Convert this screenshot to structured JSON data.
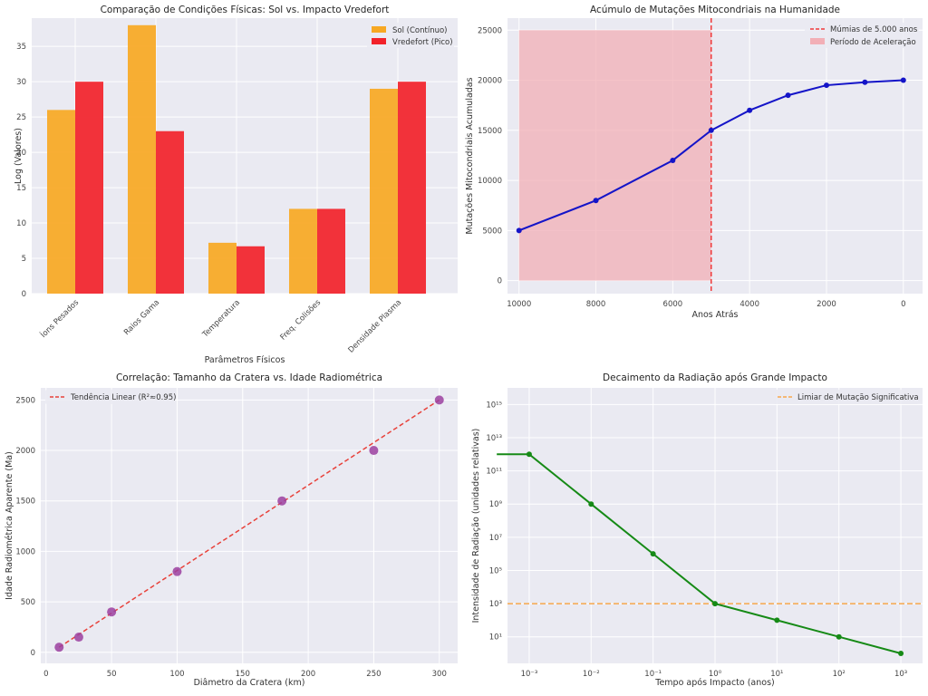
{
  "chart_data": [
    {
      "type": "bar",
      "title": "Comparação de Condições Físicas: Sol vs. Impacto Vredefort",
      "xlabel": "Parâmetros Físicos",
      "ylabel": "Log (Valores)",
      "categories": [
        "Íons Pesados",
        "Raios Gama",
        "Temperatura",
        "Freq. Colisões",
        "Densidade Plasma"
      ],
      "series": [
        {
          "name": "Sol (Contínuo)",
          "color": "#F7A823",
          "values": [
            26,
            38,
            7.2,
            12,
            29
          ]
        },
        {
          "name": "Vredefort (Pico)",
          "color": "#F2222A",
          "values": [
            30,
            23,
            6.7,
            12,
            30
          ]
        }
      ],
      "ylim": [
        0,
        39
      ],
      "yticks": [
        "0",
        "5",
        "10",
        "15",
        "20",
        "25",
        "30",
        "35"
      ],
      "grid": true,
      "legend_position": "top-right"
    },
    {
      "type": "line",
      "title": "Acúmulo de Mutações Mitocondriais na Humanidade",
      "xlabel": "Anos Atrás",
      "ylabel": "Mutações Mitocondriais Acumuladas",
      "x": [
        10000,
        8000,
        6000,
        5000,
        4000,
        3000,
        2000,
        1000,
        0
      ],
      "y": [
        5000,
        8000,
        12000,
        15000,
        17000,
        18500,
        19500,
        19800,
        20000
      ],
      "series_color": "#1414C8",
      "xlim": [
        10300,
        -500
      ],
      "ylim": [
        -1300,
        26200
      ],
      "xticks": [
        "10000",
        "8000",
        "6000",
        "4000",
        "2000",
        "0"
      ],
      "yticks": [
        "0",
        "5000",
        "10000",
        "15000",
        "20000",
        "25000"
      ],
      "vline": {
        "x": 5000,
        "label": "Múmias de 5.000 anos",
        "color": "#F03A3A"
      },
      "span": {
        "x_from": 10000,
        "x_to": 5000,
        "y_from": 0,
        "y_to": 25000,
        "label": "Período de Aceleração",
        "color": "#F2AFB6"
      },
      "grid": true,
      "legend_position": "top-right"
    },
    {
      "type": "scatter",
      "title": "Correlação: Tamanho da Cratera vs. Idade Radiométrica",
      "xlabel": "Diâmetro da Cratera (km)",
      "ylabel": "Idade Radiométrica Aparente (Ma)",
      "x": [
        10,
        25,
        50,
        100,
        180,
        250,
        300
      ],
      "y": [
        50,
        150,
        400,
        800,
        1500,
        2000,
        2500
      ],
      "point_color": "#9B3FA0",
      "fit_line": {
        "label": "Tendência Linear (R²≈0.95)",
        "x": [
          10,
          300
        ],
        "y": [
          50,
          2500
        ],
        "color": "#E8413A"
      },
      "xlim": [
        -4,
        314
      ],
      "ylim": [
        -110,
        2620
      ],
      "xticks": [
        "0",
        "50",
        "100",
        "150",
        "200",
        "250",
        "300"
      ],
      "yticks": [
        "0",
        "500",
        "1000",
        "1500",
        "2000",
        "2500"
      ],
      "grid": true,
      "legend_position": "top-left"
    },
    {
      "type": "line",
      "title": "Decaimento da Radiação após Grande Impacto",
      "xlabel": "Tempo após Impacto (anos)",
      "ylabel": "Intensidade de Radiação (unidades relativas)",
      "xscale": "log",
      "yscale": "log",
      "x": [
        0.001,
        0.01,
        0.1,
        1,
        10,
        100,
        1000
      ],
      "y": [
        1000000000000.0,
        1000000000.0,
        1000000.0,
        1000,
        100,
        10,
        1
      ],
      "leading_flat_from_x": 0.0003,
      "series_color": "#168A16",
      "hline": {
        "y": 1000,
        "label": "Limiar de Mutação Significativa",
        "color": "#F7A84C"
      },
      "xlim_log10": [
        -3.35,
        3.35
      ],
      "ylim_log10": [
        -0.6,
        16.0
      ],
      "xticks": [
        "10⁻³",
        "10⁻²",
        "10⁻¹",
        "10⁰",
        "10¹",
        "10²",
        "10³"
      ],
      "yticks": [
        "10¹",
        "10³",
        "10⁵",
        "10⁷",
        "10⁹",
        "10¹¹",
        "10¹³",
        "10¹⁵"
      ],
      "grid": true,
      "legend_position": "top-right"
    }
  ]
}
